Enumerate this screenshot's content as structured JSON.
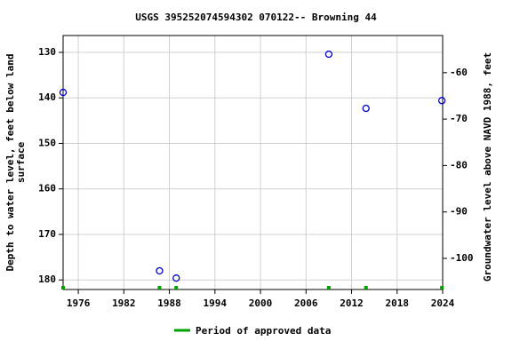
{
  "chart_data": {
    "type": "scatter",
    "title": "USGS 395252074594302 070122-- Browning 44",
    "y_label": [
      "Depth to water level, feet below land",
      "surface"
    ],
    "y2_label": "Groundwater level above NAVD 1988, feet",
    "series": [
      {
        "name": "Depth to water level",
        "color": "#0000cc",
        "x": [
          1974.0,
          1986.7,
          1988.9,
          2009.0,
          2013.9,
          2023.9
        ],
        "values": [
          138.8,
          178.0,
          179.6,
          130.4,
          142.3,
          140.6
        ]
      }
    ],
    "approved_periods": {
      "name": "Period of approved data",
      "color": "#00a000",
      "x": [
        1974.0,
        1986.7,
        1988.9,
        2009.0,
        2013.9,
        2023.9
      ]
    },
    "xlim": [
      1974,
      2024
    ],
    "xticks": [
      1976,
      1982,
      1988,
      1994,
      2000,
      2006,
      2012,
      2018,
      2024
    ],
    "ylim": [
      126.3,
      182.1
    ],
    "y_inverted": true,
    "yticks": [
      130,
      140,
      150,
      160,
      170,
      180
    ],
    "y2lim": [
      -106.7,
      -52.0
    ],
    "y2ticks": [
      -60,
      -70,
      -80,
      -90,
      -100
    ],
    "grid": true
  }
}
